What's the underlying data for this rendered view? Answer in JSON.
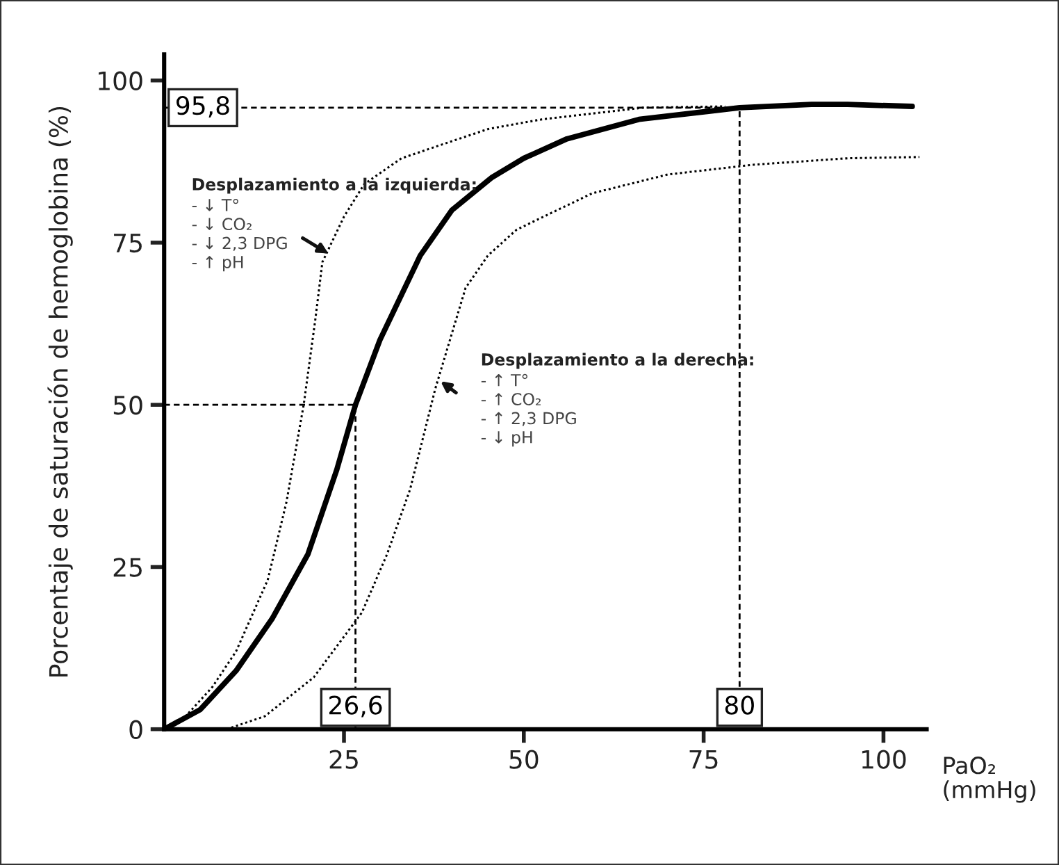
{
  "chart_data": {
    "type": "line",
    "ylabel": "Porcentaje de saturación de hemoglobina (%)",
    "xlabel": "PaO₂\n(mmHg)",
    "xlim": [
      0,
      106
    ],
    "ylim": [
      0,
      104
    ],
    "xticks": [
      25,
      50,
      75,
      100
    ],
    "yticks": [
      0,
      25,
      50,
      75,
      100
    ],
    "grid": false,
    "marker": "none",
    "series": [
      {
        "color": "#000000",
        "line_style": "solid",
        "x": [
          0,
          5,
          10,
          15,
          20,
          24,
          26.6,
          30,
          35.6,
          40,
          45.5,
          50,
          56,
          66,
          80,
          90,
          95,
          104
        ],
        "values": [
          0,
          3,
          9,
          17,
          27,
          40,
          50,
          60,
          73,
          80,
          85,
          88,
          91,
          94,
          95.8,
          96.3,
          96.3,
          96
        ]
      },
      {
        "color": "#000000",
        "line_style": "dotted",
        "x": [
          0,
          3,
          6.7,
          10,
          14.4,
          17,
          19.4,
          21,
          22,
          25,
          27.8,
          33,
          38.3,
          45,
          52.5,
          66.6,
          78
        ],
        "values": [
          0,
          2,
          6.5,
          12,
          23,
          35,
          50,
          63,
          72,
          79,
          84,
          88,
          90,
          92.5,
          94,
          95.8,
          96
        ]
      },
      {
        "color": "#000000",
        "line_style": "dotted",
        "x": [
          8.7,
          14,
          20.8,
          27.5,
          31,
          34.2,
          37.7,
          41.9,
          45,
          49,
          59.5,
          70,
          81.8,
          95,
          105
        ],
        "values": [
          0,
          2,
          8,
          18,
          27,
          37,
          52.5,
          68,
          73,
          77,
          82.6,
          85.5,
          87,
          88,
          88.2
        ]
      },
      {
        "color": "#000000",
        "line_style": "dashed",
        "x": [
          0,
          26.6,
          26.6
        ],
        "values": [
          50,
          50,
          0
        ]
      },
      {
        "color": "#000000",
        "line_style": "dashed",
        "x": [
          0,
          80,
          80
        ],
        "values": [
          95.8,
          95.8,
          0
        ]
      }
    ],
    "annotations": [
      {
        "text": "95,8",
        "x": 0,
        "y": 95.8
      },
      {
        "text": "26,6",
        "x": 26.6,
        "y": 0
      },
      {
        "text": "80",
        "x": 80,
        "y": 0
      },
      {
        "text": "Desplazamiento a la izquierda:\n- ↓ T°\n- ↓ CO₂\n- ↓ 2,3 DPG\n- ↑ pH",
        "x": 23.3,
        "y": 73
      },
      {
        "text": "Desplazamiento a la derecha:\n- ↑ T°\n- ↑ CO₂\n- ↑ 2,3 DPG\n- ↓ pH",
        "x": 38,
        "y": 54
      }
    ]
  }
}
